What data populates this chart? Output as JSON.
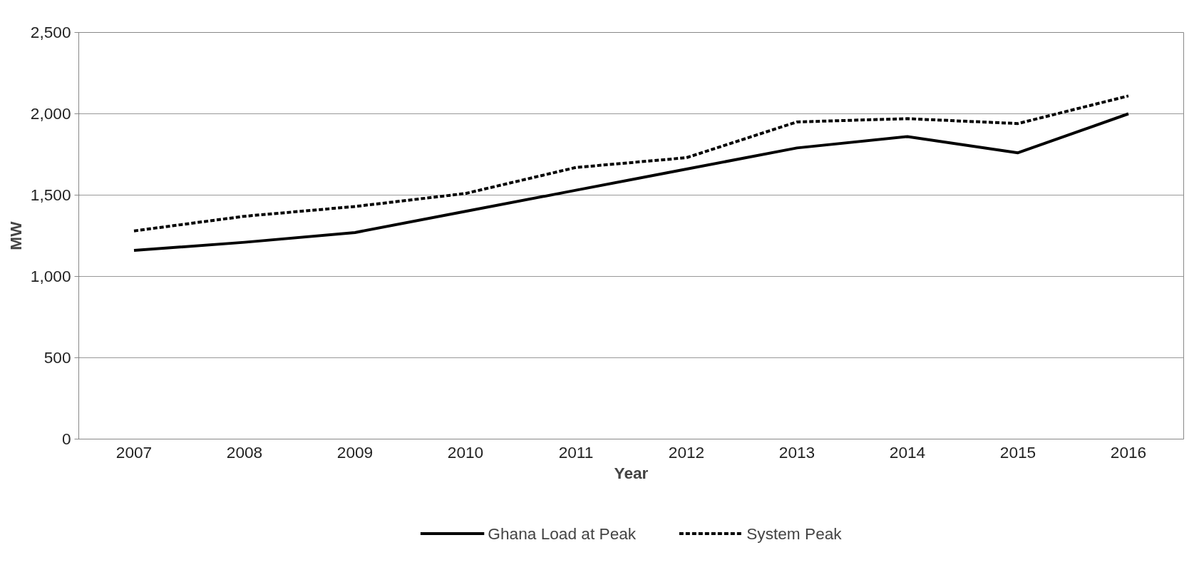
{
  "chart_data": {
    "type": "line",
    "xlabel": "Year",
    "ylabel": "MW",
    "categories": [
      "2007",
      "2008",
      "2009",
      "2010",
      "2011",
      "2012",
      "2013",
      "2014",
      "2015",
      "2016"
    ],
    "series": [
      {
        "name": "Ghana Load at Peak",
        "color": "#000000",
        "line_style": "solid",
        "values": [
          1160,
          1210,
          1270,
          1400,
          1530,
          1660,
          1790,
          1860,
          1760,
          2000
        ]
      },
      {
        "name": "System Peak",
        "color": "#000000",
        "line_style": "dashed",
        "values": [
          1280,
          1370,
          1430,
          1510,
          1670,
          1730,
          1950,
          1970,
          1940,
          2110
        ]
      }
    ],
    "ylim": [
      0,
      2500
    ],
    "yticks": [
      {
        "value": 0,
        "label": "0"
      },
      {
        "value": 500,
        "label": "500"
      },
      {
        "value": 1000,
        "label": "1,000"
      },
      {
        "value": 1500,
        "label": "1,500"
      },
      {
        "value": 2000,
        "label": "2,000"
      },
      {
        "value": 2500,
        "label": "2,500"
      }
    ],
    "grid": "y",
    "legend": "bottom",
    "marker": "none"
  }
}
